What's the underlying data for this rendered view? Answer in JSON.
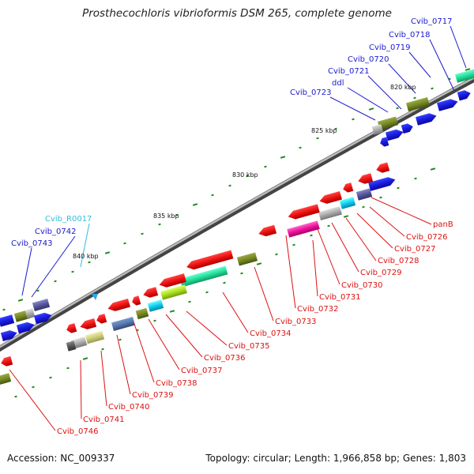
{
  "title": "Prosthecochloris vibrioformis DSM 265, complete genome",
  "footer": {
    "accession": "Accession: NC_009337",
    "summary": "Topology: circular; Length: 1,966,858 bp; Genes: 1,803"
  },
  "scale_labels": [
    "820 kbp",
    "825 kbp",
    "830 kbp",
    "835 kbp",
    "840 kbp"
  ],
  "labels_top": [
    "Cvib_0717",
    "Cvib_0718",
    "Cvib_0719",
    "Cvib_0720",
    "Cvib_0721",
    "ddl",
    "Cvib_0723",
    "Cvib_R0017",
    "Cvib_0742",
    "Cvib_0743"
  ],
  "labels_bottom": [
    "panB",
    "Cvib_0726",
    "Cvib_0727",
    "Cvib_0728",
    "Cvib_0729",
    "Cvib_0730",
    "Cvib_0731",
    "Cvib_0732",
    "Cvib_0733",
    "Cvib_0734",
    "Cvib_0735",
    "Cvib_0736",
    "Cvib_0737",
    "Cvib_0738",
    "Cvib_0739",
    "Cvib_0740",
    "Cvib_0741",
    "Cvib_0746"
  ],
  "colors": {
    "forward_label": "#1a1acc",
    "rna_label": "#33bbdd",
    "reverse_label": "#dd1111",
    "backbone": "#888888",
    "tick": "#1a8a1a"
  }
}
